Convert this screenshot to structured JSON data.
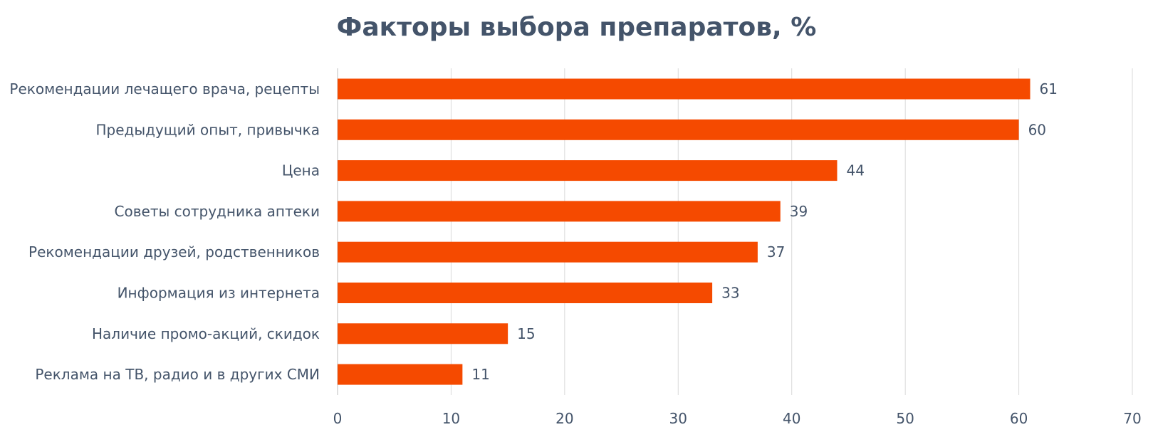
{
  "chart_data": {
    "type": "bar",
    "orientation": "horizontal",
    "title": "Факторы выбора препаратов, %",
    "categories": [
      "Рекомендации лечащего врача, рецепты",
      "Предыдущий опыт, привычка",
      "Цена",
      "Советы сотрудника аптеки",
      "Рекомендации друзей, родственников",
      "Информация из интернета",
      "Наличие промо-акций, скидок",
      "Реклама на ТВ, радио и в других СМИ"
    ],
    "values": [
      61,
      60,
      44,
      39,
      37,
      33,
      15,
      11
    ],
    "data_labels": [
      "61",
      "60",
      "44",
      "39",
      "37",
      "33",
      "15",
      "11"
    ],
    "xlim": [
      0,
      70
    ],
    "xticks": [
      0,
      10,
      20,
      30,
      40,
      50,
      60,
      70
    ],
    "xtick_labels": [
      "0",
      "10",
      "20",
      "30",
      "40",
      "50",
      "60",
      "70"
    ],
    "grid": true,
    "legend": "none",
    "bar_color": "#f54a00",
    "text_color": "#44546a",
    "grid_color": "#d9d9d9"
  }
}
